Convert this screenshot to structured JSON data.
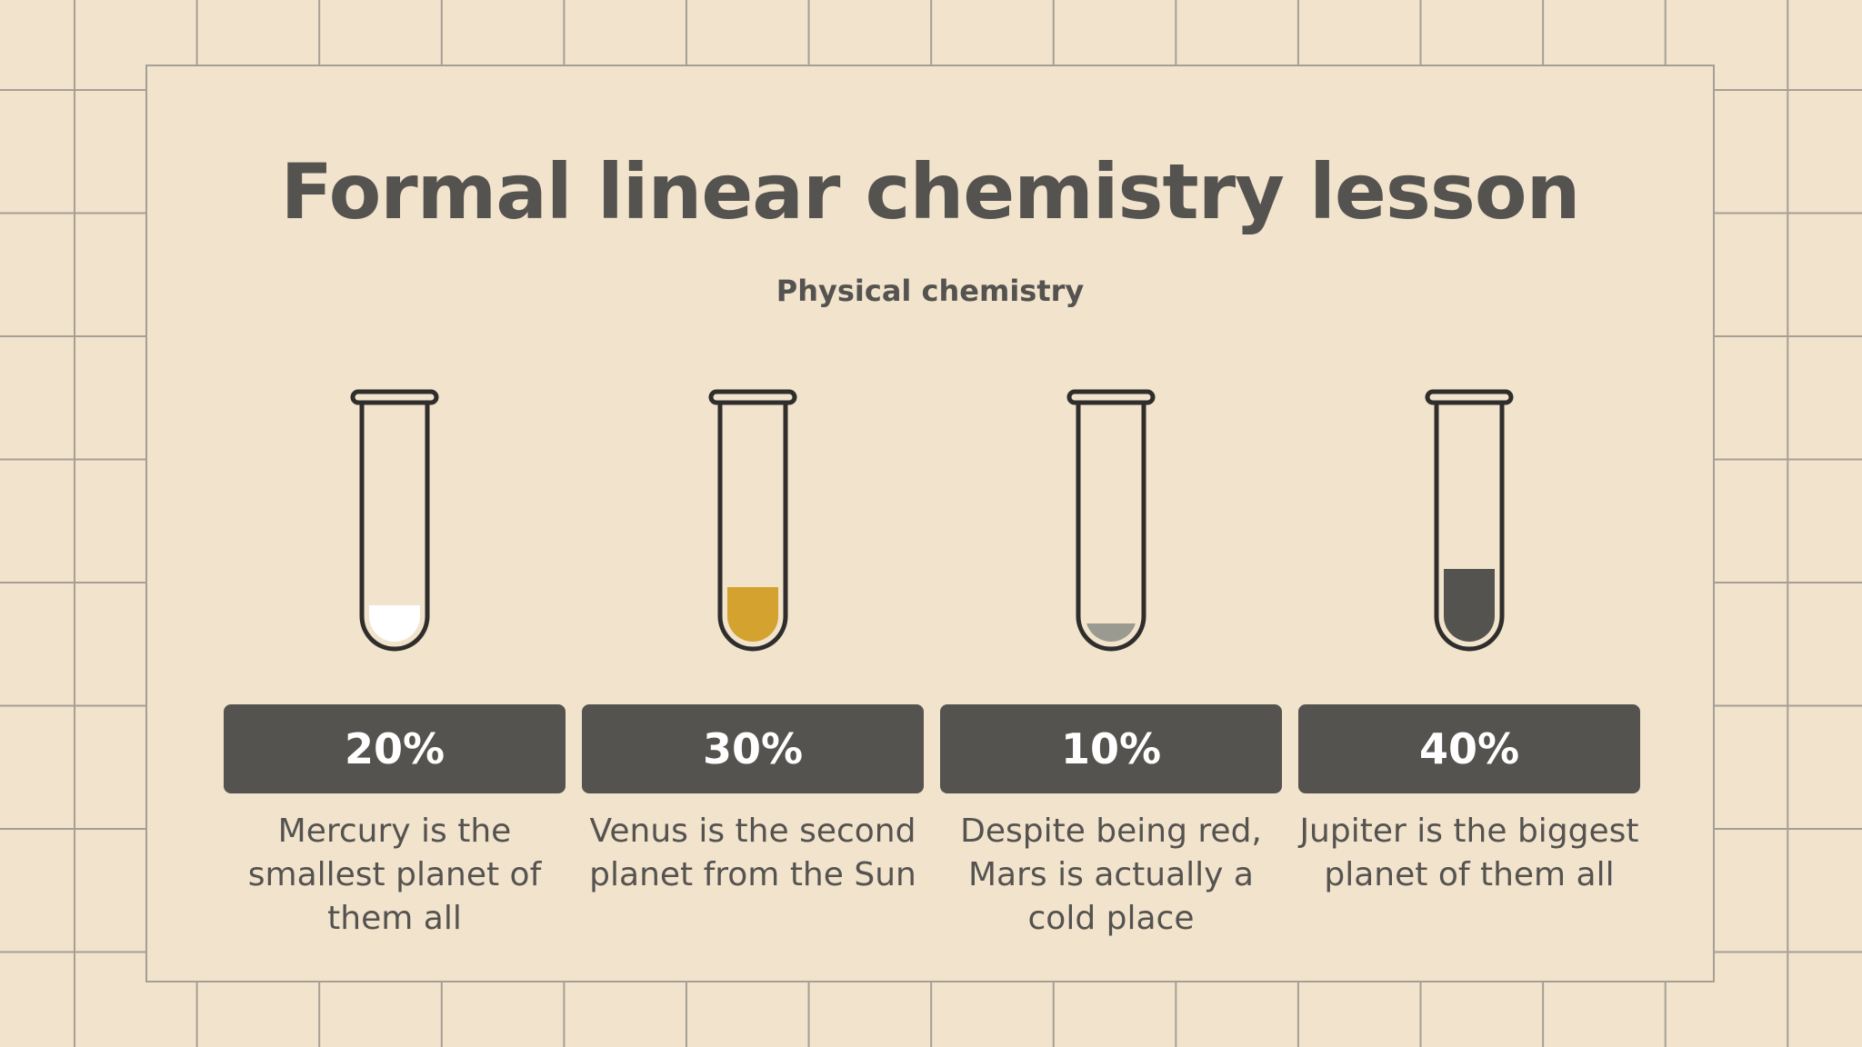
{
  "slide": {
    "title": "Formal linear chemistry lesson",
    "subtitle": "Physical chemistry"
  },
  "colors": {
    "background": "#f1e3cc",
    "grid_line": "#a69f93",
    "dark": "#555350",
    "badge_text": "#ffffff"
  },
  "items": [
    {
      "percent_label": "20%",
      "fill_fraction": 0.2,
      "fill_color": "#ffffff",
      "description": "Mercury is the smallest planet of them all"
    },
    {
      "percent_label": "30%",
      "fill_fraction": 0.3,
      "fill_color": "#d4a32f",
      "description": "Venus is the second planet from the Sun"
    },
    {
      "percent_label": "10%",
      "fill_fraction": 0.1,
      "fill_color": "#9b9a91",
      "description": "Despite being red, Mars is actually a cold place"
    },
    {
      "percent_label": "40%",
      "fill_fraction": 0.4,
      "fill_color": "#555350",
      "description": "Jupiter is the biggest planet of them all"
    }
  ]
}
